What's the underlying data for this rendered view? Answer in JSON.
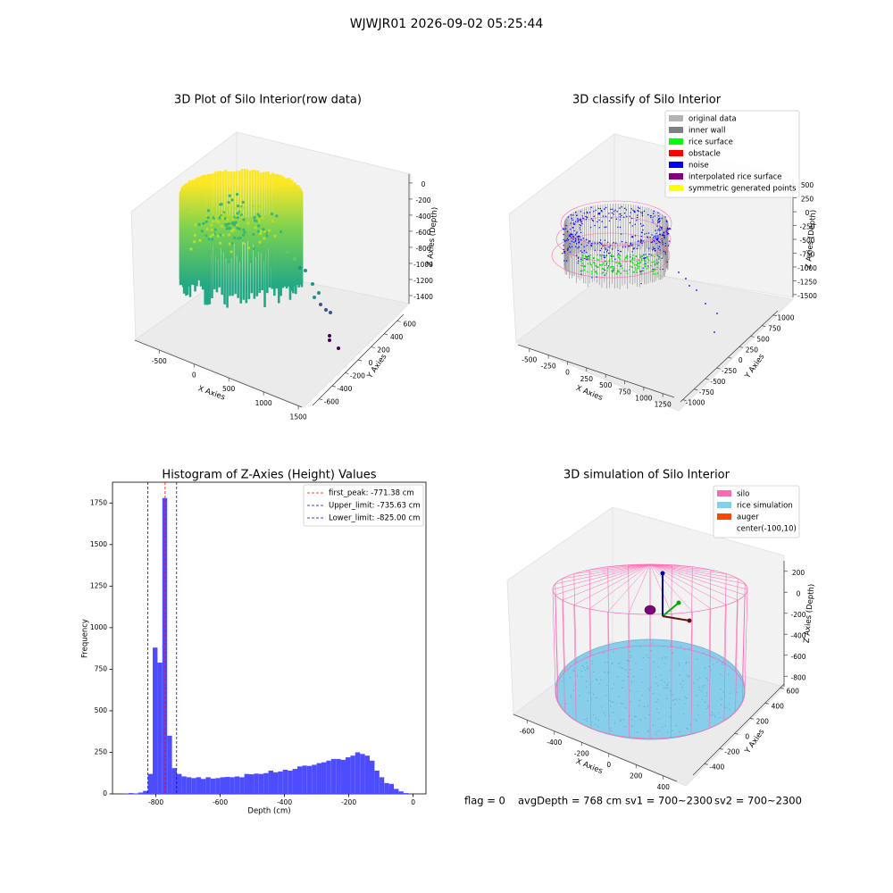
{
  "suptitle": "WJWJR01 2026-09-02 05:25:44",
  "footer": [
    "flag = 0",
    "avgDepth = 768 cm",
    "sv1 = 700~2300",
    "sv2 = 700~2300"
  ],
  "chart_data": [
    {
      "type": "scatter3d",
      "title": "3D Plot of Silo Interior(row data)",
      "xlabel": "X Axies",
      "ylabel": "Y Axies",
      "zlabel": "Z Axies (Depth)",
      "xlim": [
        -850,
        1550
      ],
      "xticks": [
        -500,
        0,
        500,
        1000,
        1500
      ],
      "ylim": [
        -700,
        700
      ],
      "yticks": [
        -600,
        -400,
        -200,
        0,
        200,
        400,
        600
      ],
      "zlim": [
        -1500,
        110
      ],
      "zticks": [
        -1400,
        -1200,
        -1000,
        -800,
        -600,
        -400,
        -200,
        0
      ]
    },
    {
      "type": "scatter3d",
      "title": "3D classify of Silo Interior",
      "xlabel": "X Axies",
      "ylabel": "Y Axies",
      "zlabel": "Z Axies (Depth)",
      "xlim": [
        -650,
        1400
      ],
      "xticks": [
        -500,
        -250,
        0,
        250,
        500,
        750,
        1000,
        1250
      ],
      "ylim": [
        -1050,
        1100
      ],
      "yticks": [
        -1000,
        -750,
        -500,
        -250,
        0,
        250,
        500,
        750,
        1000
      ],
      "zlim": [
        -1550,
        600
      ],
      "zticks": [
        -1500,
        -1250,
        -1000,
        -750,
        -500,
        -250,
        0,
        250,
        500
      ],
      "legend": [
        {
          "name": "original data",
          "color": "#b3b3b3"
        },
        {
          "name": "inner wall",
          "color": "#808080"
        },
        {
          "name": "rice surface",
          "color": "#00ff00"
        },
        {
          "name": "obstacle",
          "color": "#ff0000"
        },
        {
          "name": "noise",
          "color": "#0000ff"
        },
        {
          "name": "interpolated rice surface",
          "color": "#800080"
        },
        {
          "name": "symmetric generated points",
          "color": "#ffff00"
        }
      ]
    },
    {
      "type": "histogram",
      "title": "Histogram of Z-Axies (Height) Values",
      "xlabel": "Depth (cm)",
      "ylabel": "Frequency",
      "color": "#4d4dff",
      "bins": [
        -900,
        -885,
        -870,
        -855,
        -840,
        -825,
        -810,
        -795,
        -780,
        -765,
        -750,
        -735,
        -720,
        -705,
        -690,
        -675,
        -660,
        -645,
        -630,
        -615,
        -600,
        -585,
        -570,
        -555,
        -540,
        -525,
        -510,
        -495,
        -480,
        -465,
        -450,
        -435,
        -420,
        -405,
        -390,
        -375,
        -360,
        -345,
        -330,
        -315,
        -300,
        -285,
        -270,
        -255,
        -240,
        -225,
        -210,
        -195,
        -180,
        -165,
        -150,
        -135,
        -120,
        -105,
        -90,
        -75,
        -60,
        -45,
        -30,
        -15,
        0
      ],
      "counts": [
        3,
        5,
        2,
        8,
        18,
        120,
        880,
        790,
        1780,
        350,
        155,
        120,
        105,
        100,
        95,
        100,
        90,
        100,
        92,
        95,
        100,
        102,
        100,
        105,
        100,
        120,
        118,
        122,
        120,
        125,
        140,
        130,
        135,
        145,
        140,
        150,
        165,
        170,
        168,
        175,
        185,
        190,
        200,
        210,
        210,
        205,
        220,
        230,
        250,
        240,
        230,
        200,
        140,
        100,
        65,
        60,
        30,
        15,
        5,
        0
      ],
      "xlim": [
        -935,
        40
      ],
      "xticks": [
        -800,
        -600,
        -400,
        -200,
        0
      ],
      "ylim": [
        0,
        1875
      ],
      "yticks": [
        0,
        250,
        500,
        750,
        1000,
        1250,
        1500,
        1750
      ],
      "lines": [
        {
          "label": "first_peak: -771.38 cm",
          "value": -771.38,
          "color": "#ff0000"
        },
        {
          "label": "Upper_limit: -735.63 cm",
          "value": -735.63,
          "color": "#0000ff"
        },
        {
          "label": "Lower_limit: -825.00 cm",
          "value": -825.0,
          "color": "#0000ff"
        }
      ]
    },
    {
      "type": "surface3d",
      "title": "3D simulation of Silo Interior",
      "xlabel": "X Axies",
      "ylabel": "Y Axies",
      "zlabel": "Z Axies (Depth)",
      "xlim": [
        -700,
        500
      ],
      "xticks": [
        -600,
        -400,
        -200,
        0,
        200,
        400
      ],
      "ylim": [
        -550,
        650
      ],
      "yticks": [
        -400,
        -200,
        0,
        200,
        400,
        600
      ],
      "zlim": [
        -900,
        300
      ],
      "zticks": [
        -800,
        -600,
        -400,
        -200,
        0,
        200
      ],
      "legend": [
        {
          "name": "silo",
          "color": "#ff69b4"
        },
        {
          "name": "rice simulation",
          "color": "#87ceeb"
        },
        {
          "name": "auger",
          "color": "#ff4500"
        },
        {
          "name": "center(-100,10)",
          "color": null
        }
      ]
    }
  ]
}
